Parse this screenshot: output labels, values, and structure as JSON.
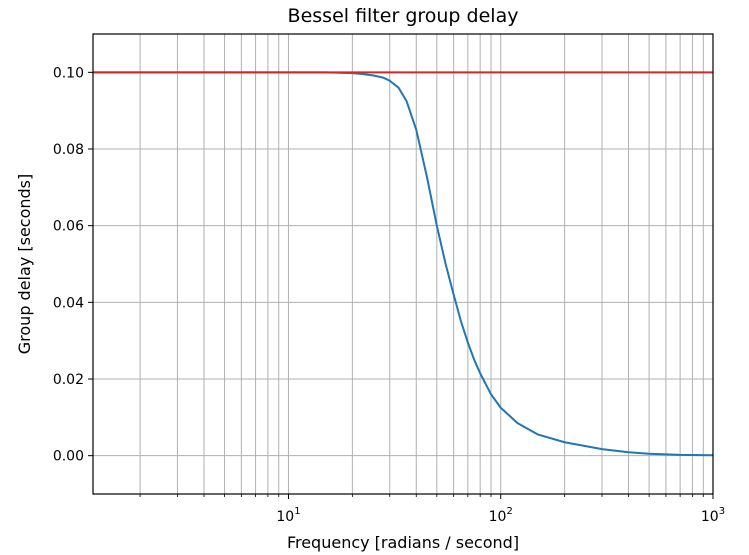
{
  "chart_data": {
    "type": "line",
    "title": "Bessel filter group delay",
    "xlabel": "Frequency [radians / second]",
    "ylabel": "Group delay [seconds]",
    "xscale": "log",
    "xlim": [
      1.2,
      1000
    ],
    "ylim": [
      -0.01,
      0.11
    ],
    "grid": true,
    "grid_which": "both",
    "yticks": [
      0.0,
      0.02,
      0.04,
      0.06,
      0.08,
      0.1
    ],
    "ytick_labels": [
      "0.00",
      "0.02",
      "0.04",
      "0.06",
      "0.08",
      "0.10"
    ],
    "xticks_major": [
      10,
      100,
      1000
    ],
    "xtick_labels": [
      {
        "base": "10",
        "exp": "1"
      },
      {
        "base": "10",
        "exp": "2"
      },
      {
        "base": "10",
        "exp": "3"
      }
    ],
    "xticks_minor": [
      2,
      3,
      4,
      5,
      6,
      7,
      8,
      9,
      20,
      30,
      40,
      50,
      60,
      70,
      80,
      90,
      200,
      300,
      400,
      500,
      600,
      700,
      800,
      900
    ],
    "series": [
      {
        "color": "#1f77b4",
        "x": [
          1.2,
          5,
          10,
          15,
          20,
          22,
          25,
          28,
          30,
          33,
          36,
          40,
          45,
          50,
          55,
          60,
          65,
          70,
          75,
          80,
          90,
          100,
          120,
          150,
          200,
          300,
          400,
          500,
          700,
          1000
        ],
        "y": [
          0.1,
          0.1,
          0.1,
          0.1,
          0.0998,
          0.0996,
          0.0992,
          0.0986,
          0.0978,
          0.096,
          0.0925,
          0.085,
          0.0725,
          0.06,
          0.05,
          0.042,
          0.035,
          0.0295,
          0.025,
          0.0215,
          0.016,
          0.0125,
          0.0085,
          0.0055,
          0.0035,
          0.0017,
          0.0009,
          0.0005,
          0.0002,
          0.0001
        ]
      },
      {
        "color": "#d62728",
        "x": [
          1.2,
          1000
        ],
        "y": [
          0.1,
          0.1
        ]
      }
    ]
  }
}
